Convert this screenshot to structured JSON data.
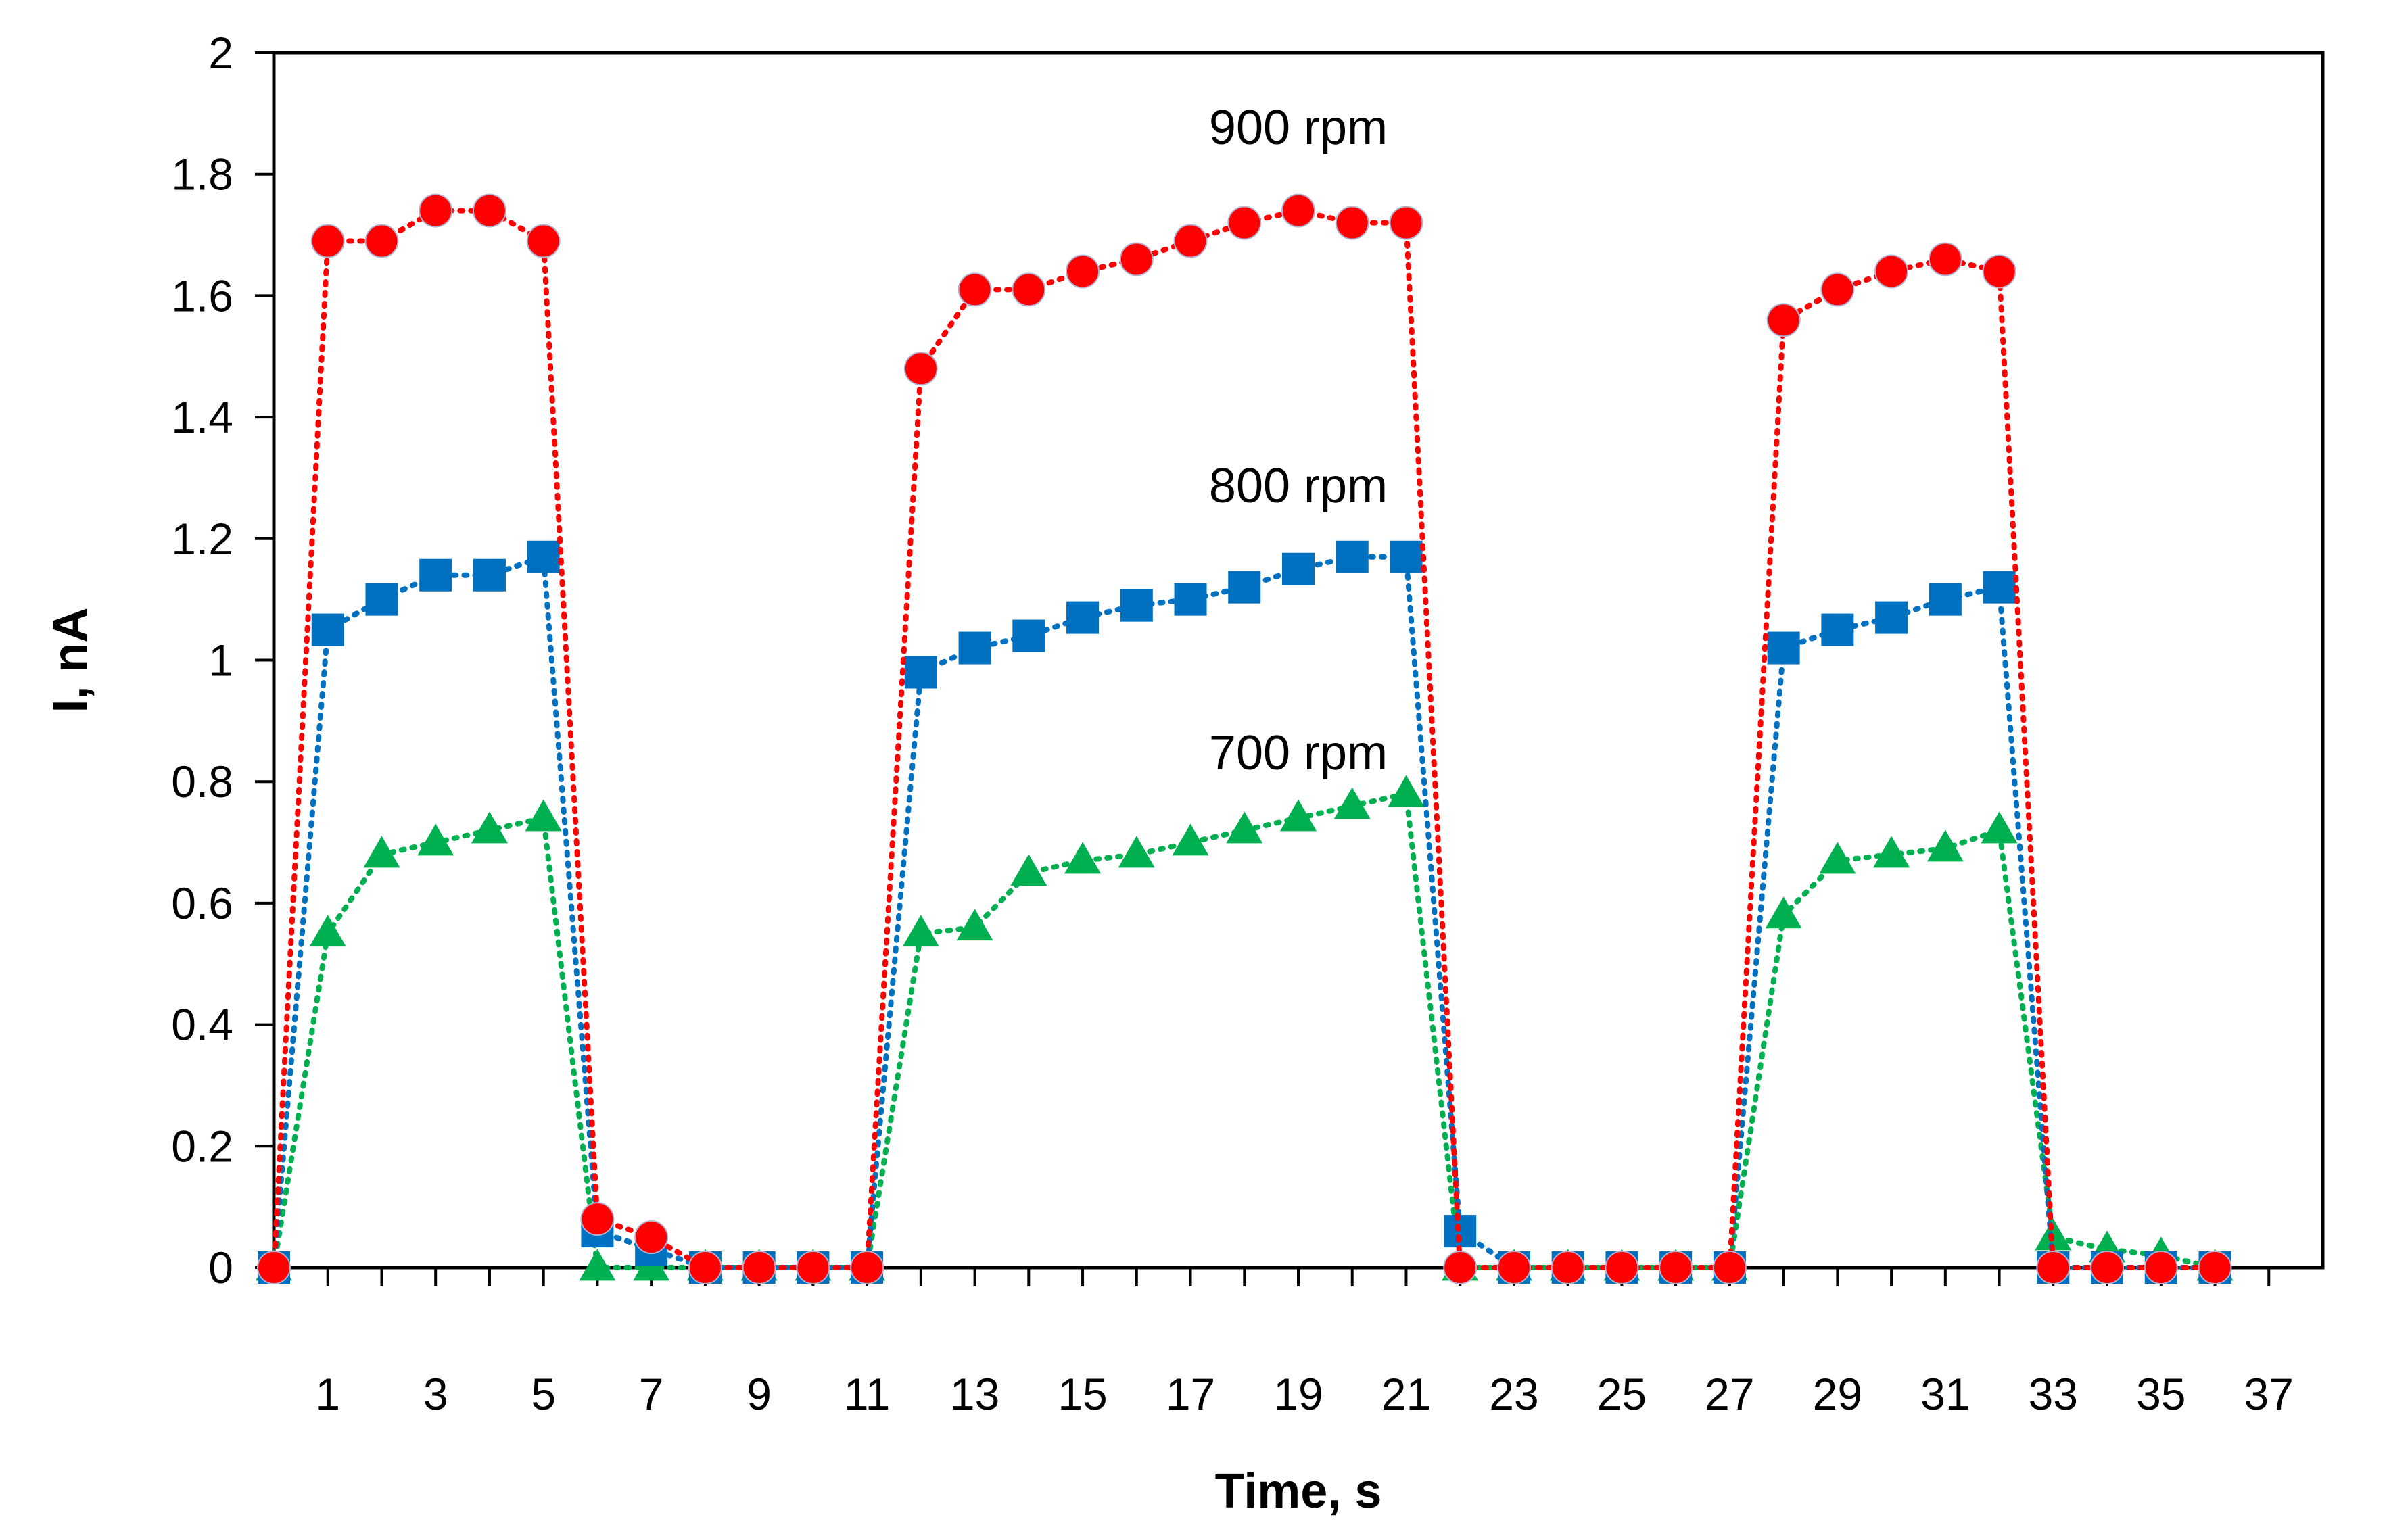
{
  "chart_data": {
    "type": "line",
    "title": "",
    "xlabel": "Time, s",
    "ylabel": "I, nA",
    "xlim": [
      0,
      38
    ],
    "ylim": [
      0,
      2
    ],
    "x_ticks": [
      1,
      3,
      5,
      7,
      9,
      11,
      13,
      15,
      17,
      19,
      21,
      23,
      25,
      27,
      29,
      31,
      33,
      35,
      37
    ],
    "y_ticks": [
      0,
      0.2,
      0.4,
      0.6,
      0.8,
      1,
      1.2,
      1.4,
      1.6,
      1.8,
      2
    ],
    "y_tick_labels": [
      "0",
      "0.2",
      "0.4",
      "0.6",
      "0.8",
      "1",
      "1.2",
      "1.4",
      "1.6",
      "1.8",
      "2"
    ],
    "grid": false,
    "annotations": [
      {
        "text": "900 rpm",
        "x": 19.0,
        "y": 1.85
      },
      {
        "text": "800 rpm",
        "x": 19.0,
        "y": 1.26
      },
      {
        "text": "700 rpm",
        "x": 19.0,
        "y": 0.82
      }
    ],
    "series": [
      {
        "name": "900 rpm",
        "color": "#ff0000",
        "marker": "circle",
        "x": [
          0,
          1,
          2,
          3,
          4,
          5,
          6,
          7,
          8,
          9,
          10,
          11,
          12,
          13,
          14,
          15,
          16,
          17,
          18,
          19,
          20,
          21,
          22,
          23,
          24,
          25,
          26,
          27,
          28,
          29,
          30,
          31,
          32,
          33,
          34,
          35,
          36
        ],
        "y": [
          0,
          1.69,
          1.69,
          1.74,
          1.74,
          1.69,
          0.08,
          0.05,
          0,
          0,
          0,
          0,
          1.48,
          1.61,
          1.61,
          1.64,
          1.66,
          1.69,
          1.72,
          1.74,
          1.72,
          1.72,
          0,
          0,
          0,
          0,
          0,
          0,
          1.56,
          1.61,
          1.64,
          1.66,
          1.64,
          0,
          0,
          0,
          0
        ]
      },
      {
        "name": "800 rpm",
        "color": "#0070c0",
        "marker": "square",
        "x": [
          0,
          1,
          2,
          3,
          4,
          5,
          6,
          7,
          8,
          9,
          10,
          11,
          12,
          13,
          14,
          15,
          16,
          17,
          18,
          19,
          20,
          21,
          22,
          23,
          24,
          25,
          26,
          27,
          28,
          29,
          30,
          31,
          32,
          33,
          34,
          35,
          36
        ],
        "y": [
          0,
          1.05,
          1.1,
          1.14,
          1.14,
          1.17,
          0.06,
          0.03,
          0,
          0,
          0,
          0,
          0.98,
          1.02,
          1.04,
          1.07,
          1.09,
          1.1,
          1.12,
          1.15,
          1.17,
          1.17,
          0.06,
          0,
          0,
          0,
          0,
          0,
          1.02,
          1.05,
          1.07,
          1.1,
          1.12,
          0,
          0,
          0,
          0
        ]
      },
      {
        "name": "700 rpm",
        "color": "#00b050",
        "marker": "triangle",
        "x": [
          0,
          1,
          2,
          3,
          4,
          5,
          6,
          7,
          8,
          9,
          10,
          11,
          12,
          13,
          14,
          15,
          16,
          17,
          18,
          19,
          20,
          21,
          22,
          23,
          24,
          25,
          26,
          27,
          28,
          29,
          30,
          31,
          32,
          33,
          34,
          35,
          36
        ],
        "y": [
          0,
          0.55,
          0.68,
          0.7,
          0.72,
          0.74,
          0,
          0,
          0,
          0,
          0,
          0,
          0.55,
          0.56,
          0.65,
          0.67,
          0.68,
          0.7,
          0.72,
          0.74,
          0.76,
          0.78,
          0,
          0,
          0,
          0,
          0,
          0,
          0.58,
          0.67,
          0.68,
          0.69,
          0.72,
          0.05,
          0.03,
          0.02,
          0
        ]
      }
    ]
  }
}
